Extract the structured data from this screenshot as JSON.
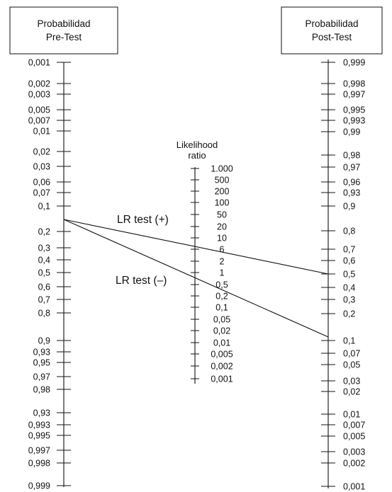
{
  "pretest": {
    "title_line1": "Probabilidad",
    "title_line2": "Pre-Test",
    "ticks": [
      "0,001",
      "0,002",
      "0,003",
      "0,005",
      "0,007",
      "0,01",
      "0,02",
      "0,03",
      "0,06",
      "0,07",
      "0,1",
      "0,2",
      "0,3",
      "0,4",
      "0,5",
      "0,6",
      "0,7",
      "0,8",
      "0,9",
      "0,93",
      "0,95",
      "0,97",
      "0,98",
      "0,93",
      "0,993",
      "0,995",
      "0,997",
      "0,998",
      "0,999"
    ]
  },
  "likelihood": {
    "title_line1": "Likelihood",
    "title_line2": "ratio",
    "ticks": [
      "1.000",
      "500",
      "200",
      "100",
      "50",
      "20",
      "10",
      "6",
      "2",
      "1",
      "0,5",
      "0,2",
      "0,1",
      "0,05",
      "0,02",
      "0,01",
      "0,005",
      "0,002",
      "0,001"
    ]
  },
  "posttest": {
    "title_line1": "Probabilidad",
    "title_line2": "Post-Test",
    "ticks": [
      "0,999",
      "0,998",
      "0,997",
      "0,995",
      "0,993",
      "0,99",
      "0,98",
      "0,97",
      "0,96",
      "0,93",
      "0,9",
      "0,8",
      "0,7",
      "0,6",
      "0,5",
      "0,4",
      "0,3",
      "0,2",
      "0,1",
      "0,07",
      "0,05",
      "0,03",
      "0,02",
      "0,01",
      "0,007",
      "0,005",
      "0,003",
      "0,002",
      "0,001"
    ]
  },
  "annotations": {
    "lr_positive": "LR test (+)",
    "lr_negative": "LR test (–)"
  },
  "example": {
    "pretest_probability": "0,15",
    "positive_result_posttest": "0,5",
    "negative_result_posttest": "0,12"
  }
}
